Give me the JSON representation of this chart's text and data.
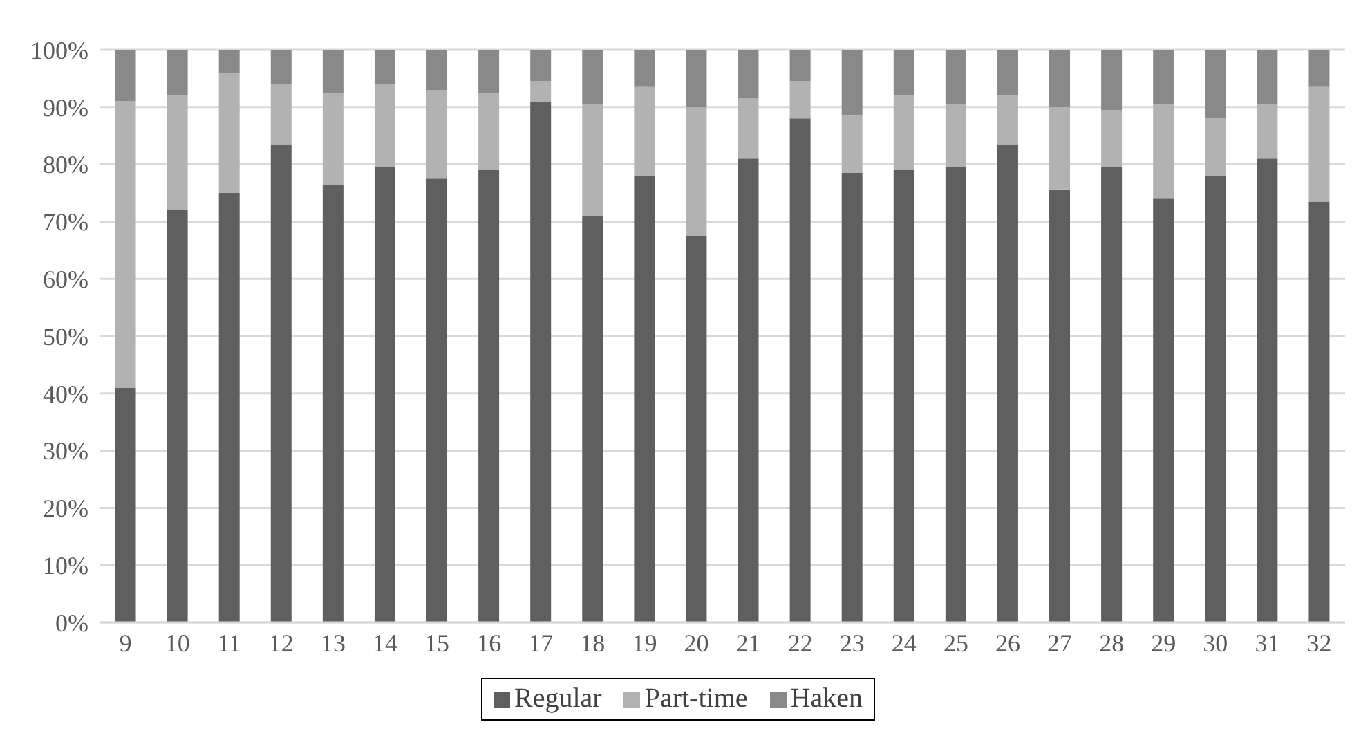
{
  "chart_data": {
    "type": "bar",
    "stacked": true,
    "categories": [
      "9",
      "10",
      "11",
      "12",
      "13",
      "14",
      "15",
      "16",
      "17",
      "18",
      "19",
      "20",
      "21",
      "22",
      "23",
      "24",
      "25",
      "26",
      "27",
      "28",
      "29",
      "30",
      "31",
      "32"
    ],
    "series": [
      {
        "name": "Regular",
        "color": "#5f5f5f",
        "values": [
          41,
          72,
          75,
          83.5,
          76.5,
          79.5,
          77.5,
          79,
          91,
          71,
          78,
          67.5,
          81,
          88,
          78.5,
          79,
          79.5,
          83.5,
          75.5,
          79.5,
          74,
          78,
          81,
          73.5
        ]
      },
      {
        "name": "Part-time",
        "color": "#b2b2b2",
        "values": [
          50,
          20,
          21,
          10.5,
          16,
          14.5,
          15.5,
          13.5,
          3.5,
          19.5,
          15.5,
          22.5,
          10.5,
          6.5,
          10,
          13,
          11,
          8.5,
          14.5,
          10,
          16.5,
          10,
          9.5,
          20
        ]
      },
      {
        "name": "Haken",
        "color": "#898989",
        "values": [
          9,
          8,
          4,
          6,
          7.5,
          6,
          7,
          7.5,
          5.5,
          9.5,
          6.5,
          10,
          8.5,
          5.5,
          11.5,
          8,
          9.5,
          8,
          10,
          10.5,
          9.5,
          12,
          9.5,
          6.5
        ]
      }
    ],
    "ylim": [
      0,
      100
    ],
    "yticks": [
      {
        "value": 0,
        "label": "0%"
      },
      {
        "value": 10,
        "label": "10%"
      },
      {
        "value": 20,
        "label": "20%"
      },
      {
        "value": 30,
        "label": "30%"
      },
      {
        "value": 40,
        "label": "40%"
      },
      {
        "value": 50,
        "label": "50%"
      },
      {
        "value": 60,
        "label": "60%"
      },
      {
        "value": 70,
        "label": "70%"
      },
      {
        "value": 80,
        "label": "80%"
      },
      {
        "value": 90,
        "label": "90%"
      },
      {
        "value": 100,
        "label": "100%"
      }
    ],
    "grid": "y",
    "legend": "bottom"
  }
}
